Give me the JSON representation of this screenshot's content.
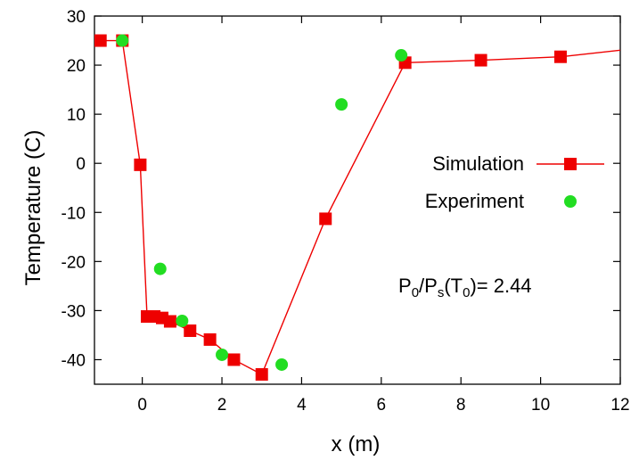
{
  "chart_data": {
    "type": "line",
    "xlabel": "x (m)",
    "ylabel": "Temperature (C)",
    "xlim": [
      -1.2,
      12
    ],
    "ylim": [
      -45,
      30
    ],
    "xticks": [
      0,
      2,
      4,
      6,
      8,
      10,
      12
    ],
    "yticks": [
      -40,
      -30,
      -20,
      -10,
      0,
      10,
      20,
      30
    ],
    "xtick_labels": [
      "0",
      "2",
      "4",
      "6",
      "8",
      "10",
      "12"
    ],
    "ytick_labels": [
      "-40",
      "-30",
      "-20",
      "-10",
      "0",
      "10",
      "20",
      "30"
    ],
    "grid": false,
    "legend_position": "right",
    "annotation": {
      "parts": [
        {
          "text": "P",
          "sub": false
        },
        {
          "text": "0",
          "sub": true
        },
        {
          "text": "/P",
          "sub": false
        },
        {
          "text": "s",
          "sub": true
        },
        {
          "text": "(T",
          "sub": false
        },
        {
          "text": "0",
          "sub": true
        },
        {
          "text": ")= 2.44",
          "sub": false
        }
      ]
    },
    "series": [
      {
        "name": "Simulation",
        "style": "line-square",
        "color": "#ee0000",
        "x": [
          -1.05,
          -0.5,
          -0.05,
          0.12,
          0.3,
          0.5,
          0.7,
          1.2,
          1.7,
          2.3,
          3.0,
          4.6,
          6.6,
          8.5,
          10.5,
          12.5
        ],
        "y": [
          25,
          25,
          -0.3,
          -31.2,
          -31.2,
          -31.5,
          -32.2,
          -34.1,
          -35.9,
          -40.0,
          -43.0,
          -11.3,
          20.5,
          21.0,
          21.7,
          23.5
        ]
      },
      {
        "name": "Experiment",
        "style": "circle",
        "color": "#22dd22",
        "x": [
          -0.5,
          0.45,
          1.0,
          2.0,
          3.5,
          5.0,
          6.5
        ],
        "y": [
          25,
          -21.5,
          -32.1,
          -39.0,
          -41.0,
          12.0,
          22.0
        ]
      }
    ]
  }
}
